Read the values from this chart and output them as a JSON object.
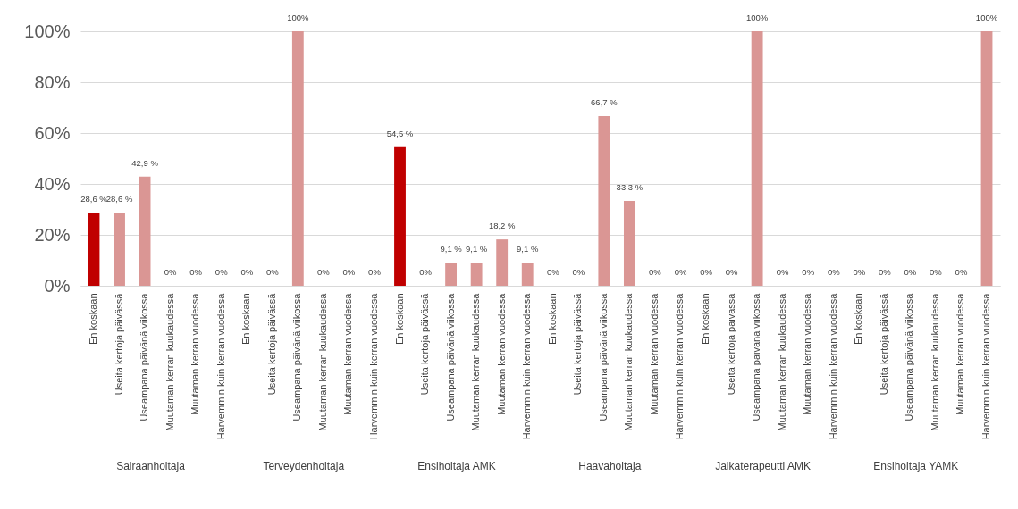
{
  "chart_data": {
    "type": "bar",
    "categories": [
      "En koskaan",
      "Useita kertoja päivässä",
      "Useampana päivänä viikossa",
      "Muutaman kerran kuukaudessa",
      "Muutaman kerran vuodessa",
      "Harvemmin kuin kerran vuodessa",
      "En koskaan",
      "Useita kertoja päivässä",
      "Useampana päivänä viikossa",
      "Muutaman kerran kuukaudessa",
      "Muutaman kerran vuodessa",
      "Harvemmin kuin kerran vuodessa",
      "En koskaan",
      "Useita kertoja päivässä",
      "Useampana päivänä viikossa",
      "Muutaman kerran kuukaudessa",
      "Muutaman kerran vuodessa",
      "Harvemmin kuin kerran vuodessa",
      "En koskaan",
      "Useita kertoja päivässä",
      "Useampana päivänä viikossa",
      "Muutaman kerran kuukaudessa",
      "Muutaman kerran vuodessa",
      "Harvemmin kuin kerran vuodessa",
      "En koskaan",
      "Useita kertoja päivässä",
      "Useampana päivänä viikossa",
      "Muutaman kerran kuukaudessa",
      "Muutaman kerran vuodessa",
      "Harvemmin kuin kerran vuodessa",
      "En koskaan",
      "Useita kertoja päivässä",
      "Useampana päivänä viikossa",
      "Muutaman kerran kuukaudessa",
      "Muutaman kerran vuodessa",
      "Harvemmin kuin kerran vuodessa"
    ],
    "values": [
      28.6,
      28.6,
      42.9,
      0,
      0,
      0,
      0,
      0,
      100,
      0,
      0,
      0,
      54.5,
      0,
      9.1,
      9.1,
      18.2,
      9.1,
      0,
      0,
      66.7,
      33.3,
      0,
      0,
      0,
      0,
      100,
      0,
      0,
      0,
      0,
      0,
      0,
      0,
      0,
      100
    ],
    "value_labels": [
      "28,6 %",
      "28,6 %",
      "42,9 %",
      "0%",
      "0%",
      "0%",
      "0%",
      "0%",
      "100%",
      "0%",
      "0%",
      "0%",
      "54,5 %",
      "0%",
      "9,1 %",
      "9,1 %",
      "18,2 %",
      "9,1 %",
      "0%",
      "0%",
      "66,7 %",
      "33,3 %",
      "0%",
      "0%",
      "0%",
      "0%",
      "100%",
      "0%",
      "0%",
      "0%",
      "0%",
      "0%",
      "0%",
      "0%",
      "0%",
      "100%"
    ],
    "colors": [
      "#c00000",
      "#da9694",
      "#da9694",
      "#da9694",
      "#da9694",
      "#da9694",
      "#c00000",
      "#da9694",
      "#da9694",
      "#da9694",
      "#da9694",
      "#da9694",
      "#c00000",
      "#da9694",
      "#da9694",
      "#da9694",
      "#da9694",
      "#da9694",
      "#c00000",
      "#da9694",
      "#da9694",
      "#da9694",
      "#da9694",
      "#da9694",
      "#c00000",
      "#da9694",
      "#da9694",
      "#da9694",
      "#da9694",
      "#da9694",
      "#c00000",
      "#da9694",
      "#da9694",
      "#da9694",
      "#da9694",
      "#da9694"
    ],
    "ylim": [
      0,
      100
    ],
    "yticks": [
      {
        "value": 0,
        "label": "0%"
      },
      {
        "value": 20,
        "label": "20%"
      },
      {
        "value": 40,
        "label": "40%"
      },
      {
        "value": 60,
        "label": "60%"
      },
      {
        "value": 80,
        "label": "80%"
      },
      {
        "value": 100,
        "label": "100%"
      }
    ],
    "grid": "y",
    "annotations": [
      "Sairaanhoitaja",
      "Terveydenhoitaja",
      "Ensihoitaja AMK",
      "Haavahoitaja",
      "Jalkaterapeutti AMK",
      "Ensihoitaja YAMK"
    ]
  }
}
